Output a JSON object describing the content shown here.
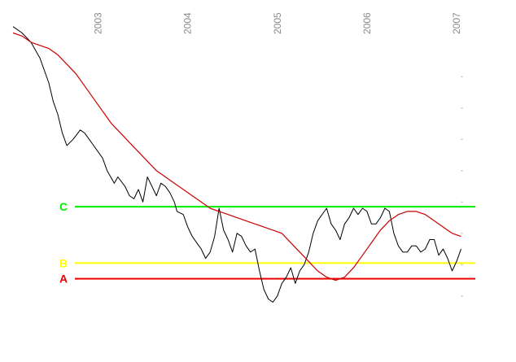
{
  "chart_data": {
    "type": "line",
    "title": "",
    "xlabel": "",
    "ylabel": "",
    "x_tick_labels": [
      "2003",
      "2004",
      "2005",
      "2006",
      "2007"
    ],
    "x_tick_values": [
      2003,
      2004,
      2005,
      2006,
      2007
    ],
    "xlim": [
      2002.05,
      2007.1
    ],
    "ylim": [
      0,
      100
    ],
    "grid": false,
    "legend": "none",
    "levels": [
      {
        "label": "C",
        "value": 40.5,
        "color": "#00ee00"
      },
      {
        "label": "B",
        "value": 22.5,
        "color": "#ffff00"
      },
      {
        "label": "A",
        "value": 17.5,
        "color": "#ee0000"
      }
    ],
    "series": [
      {
        "color": "#000000",
        "x": [
          2002.05,
          2002.15,
          2002.25,
          2002.35,
          2002.45,
          2002.5,
          2002.55,
          2002.6,
          2002.65,
          2002.72,
          2002.8,
          2002.85,
          2002.9,
          2002.95,
          2003.0,
          2003.05,
          2003.1,
          2003.18,
          2003.22,
          2003.3,
          2003.35,
          2003.4,
          2003.45,
          2003.5,
          2003.55,
          2003.6,
          2003.65,
          2003.7,
          2003.75,
          2003.8,
          2003.85,
          2003.88,
          2003.95,
          2004.0,
          2004.05,
          2004.1,
          2004.15,
          2004.2,
          2004.25,
          2004.3,
          2004.35,
          2004.4,
          2004.45,
          2004.5,
          2004.55,
          2004.6,
          2004.65,
          2004.7,
          2004.75,
          2004.8,
          2004.85,
          2004.9,
          2004.95,
          2005.0,
          2005.05,
          2005.1,
          2005.15,
          2005.2,
          2005.25,
          2005.3,
          2005.35,
          2005.4,
          2005.45,
          2005.5,
          2005.55,
          2005.6,
          2005.65,
          2005.7,
          2005.75,
          2005.8,
          2005.85,
          2005.9,
          2005.95,
          2006.0,
          2006.05,
          2006.1,
          2006.15,
          2006.2,
          2006.25,
          2006.3,
          2006.35,
          2006.4,
          2006.45,
          2006.5,
          2006.55,
          2006.6,
          2006.65,
          2006.7,
          2006.75,
          2006.8,
          2006.85,
          2006.9,
          2006.95,
          2007.0,
          2007.05
        ],
        "y": [
          98,
          96,
          93,
          88,
          80,
          74,
          70,
          64,
          60,
          62,
          65,
          64,
          62,
          60,
          58,
          56,
          52,
          48,
          50,
          47,
          44,
          43,
          46,
          42,
          50,
          47,
          44,
          48,
          47,
          45,
          42,
          39,
          38,
          34,
          31,
          29,
          27,
          24,
          26,
          31,
          40,
          33,
          30,
          26,
          32,
          31,
          28,
          26,
          27,
          20,
          14,
          11,
          10,
          12,
          16,
          18,
          21,
          16,
          20,
          22,
          26,
          32,
          36,
          38,
          40,
          35,
          33,
          30,
          35,
          37,
          40,
          38,
          40,
          39,
          35,
          35,
          37,
          40,
          39,
          32,
          28,
          26,
          26,
          28,
          28,
          26,
          27,
          30,
          30,
          25,
          27,
          24,
          20,
          23,
          27
        ]
      },
      {
        "color": "#cc0000",
        "x": [
          2002.05,
          2002.15,
          2002.25,
          2002.35,
          2002.45,
          2002.55,
          2002.65,
          2002.75,
          2002.85,
          2002.95,
          2003.05,
          2003.15,
          2003.25,
          2003.35,
          2003.45,
          2003.55,
          2003.65,
          2003.75,
          2003.85,
          2003.95,
          2004.05,
          2004.15,
          2004.25,
          2004.35,
          2004.45,
          2004.55,
          2004.65,
          2004.75,
          2004.85,
          2004.95,
          2005.05,
          2005.15,
          2005.25,
          2005.35,
          2005.45,
          2005.55,
          2005.65,
          2005.75,
          2005.85,
          2005.95,
          2006.05,
          2006.15,
          2006.25,
          2006.35,
          2006.45,
          2006.55,
          2006.65,
          2006.75,
          2006.85,
          2006.95,
          2007.05
        ],
        "y": [
          96,
          95,
          93,
          92,
          91,
          89,
          86,
          83,
          79,
          75,
          71,
          67,
          64,
          61,
          58,
          55,
          52,
          50,
          48,
          46,
          44,
          42,
          40,
          39,
          38,
          37,
          36,
          35,
          34,
          33,
          32,
          29,
          26,
          23,
          20,
          18,
          17,
          18,
          21,
          25,
          29,
          33,
          36,
          38,
          39,
          39,
          38,
          36,
          34,
          32,
          31
        ]
      }
    ]
  }
}
